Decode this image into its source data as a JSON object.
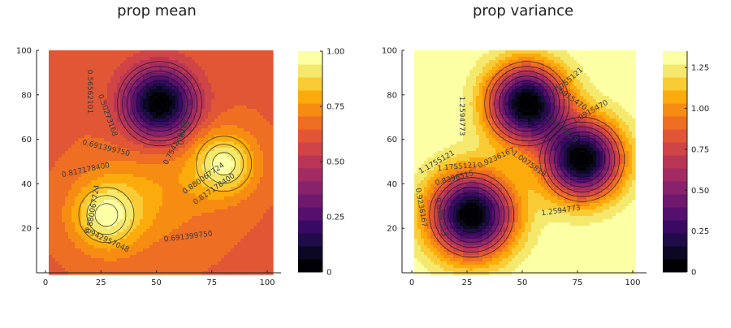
{
  "chart_data": [
    {
      "type": "heatmap",
      "subtype": "filled-contour",
      "title": "prop mean",
      "xlim": [
        0,
        100
      ],
      "ylim": [
        0,
        100
      ],
      "x_ticks": [
        "0",
        "25",
        "50",
        "75",
        "100"
      ],
      "y_ticks": [
        "20",
        "40",
        "60",
        "80",
        "100"
      ],
      "colormap": "inferno",
      "colorbar": {
        "range": [
          0,
          1.0
        ],
        "levels": 17,
        "ticks": [
          "0",
          "0.25",
          "0.50",
          "0.75",
          "1.00"
        ]
      },
      "background_color": "#E8682C",
      "features": [
        {
          "kind": "low",
          "x": 50,
          "y": 76,
          "min_value": 0.0
        },
        {
          "kind": "high",
          "x": 26,
          "y": 26,
          "max_value": 0.94
        },
        {
          "kind": "high",
          "x": 79,
          "y": 49,
          "max_value": 0.94
        }
      ],
      "contour_labels": [
        {
          "text": "0.691399750"
        },
        {
          "text": "0.691399750"
        },
        {
          "text": "0.817178400"
        },
        {
          "text": "0.817178400"
        },
        {
          "text": "0.880067724"
        },
        {
          "text": "0.880067724"
        },
        {
          "text": "0.942957048"
        },
        {
          "text": "0.754289075"
        },
        {
          "text": "0.56562101"
        },
        {
          "text": "0.50273168"
        },
        {
          "text": "0.62851033"
        }
      ]
    },
    {
      "type": "heatmap",
      "subtype": "filled-contour",
      "title": "prop variance",
      "xlim": [
        0,
        100
      ],
      "ylim": [
        0,
        100
      ],
      "x_ticks": [
        "0",
        "25",
        "50",
        "75",
        "100"
      ],
      "y_ticks": [
        "20",
        "40",
        "60",
        "80",
        "100"
      ],
      "colormap": "inferno",
      "colorbar": {
        "range": [
          0,
          1.35
        ],
        "levels": 17,
        "ticks": [
          "0",
          "0.25",
          "0.50",
          "0.75",
          "1.00",
          "1.25"
        ]
      },
      "background_color": "#FCFFA4",
      "features": [
        {
          "kind": "low",
          "x": 51,
          "y": 76,
          "min_value": 0.0
        },
        {
          "kind": "low",
          "x": 76,
          "y": 51,
          "min_value": 0.0
        },
        {
          "kind": "low",
          "x": 26,
          "y": 26,
          "min_value": 0.0
        }
      ],
      "contour_labels": [
        {
          "text": "1.2594773"
        },
        {
          "text": "1.2594773"
        },
        {
          "text": "1.1755121"
        },
        {
          "text": "1.1755121"
        },
        {
          "text": "1.1755121"
        },
        {
          "text": "1.0915470"
        },
        {
          "text": "1.0915470"
        },
        {
          "text": "1.0075818"
        },
        {
          "text": "1.0075818"
        },
        {
          "text": "0.9236167"
        },
        {
          "text": "0.9236167"
        },
        {
          "text": "0.8396515"
        },
        {
          "text": "0.8396515"
        }
      ]
    }
  ]
}
